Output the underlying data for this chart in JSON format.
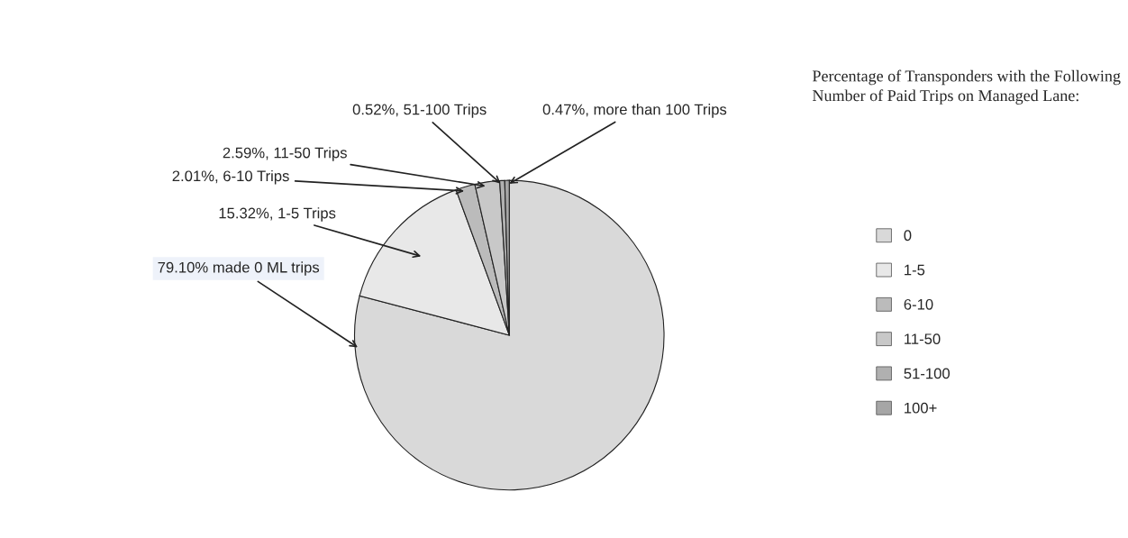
{
  "chart_data": {
    "type": "pie",
    "legend_title": "Percentage of Transponders with the Following Number of Paid Trips on Managed Lane:",
    "categories": [
      "0",
      "1-5",
      "6-10",
      "11-50",
      "51-100",
      "100+"
    ],
    "values": [
      79.1,
      15.32,
      2.01,
      2.59,
      0.52,
      0.47
    ],
    "colors": [
      "#d9d9d9",
      "#e8e8e8",
      "#bbbbbb",
      "#c8c8c8",
      "#b0b0b0",
      "#a6a6a6"
    ],
    "value_labels": [
      "79.10% made 0 ML trips",
      "15.32%, 1-5 Trips",
      "2.01%, 6-10 Trips",
      "2.59%, 11-50 Trips",
      "0.52%, 51-100 Trips",
      "0.47%, more than 100 Trips"
    ],
    "legend": "right"
  }
}
